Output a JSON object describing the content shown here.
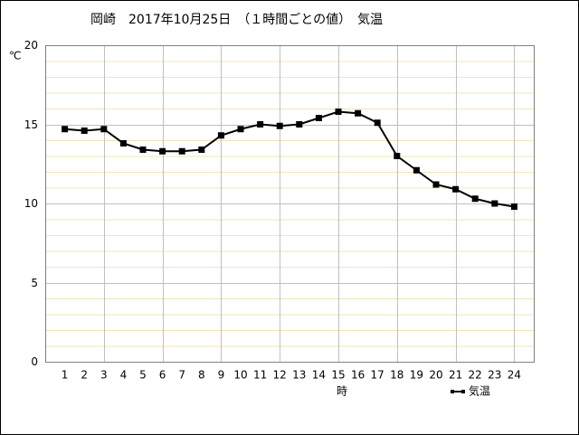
{
  "chart_data": {
    "type": "line",
    "title": "岡崎　2017年10月25日　（１時間ごとの値）　気温",
    "y_label": "℃",
    "x_label": "時",
    "x": [
      1,
      2,
      3,
      4,
      5,
      6,
      7,
      8,
      9,
      10,
      11,
      12,
      13,
      14,
      15,
      16,
      17,
      18,
      19,
      20,
      21,
      22,
      23,
      24
    ],
    "series": [
      {
        "name": "気温",
        "color": "#000000",
        "values": [
          14.7,
          14.6,
          14.7,
          13.8,
          13.4,
          13.3,
          13.3,
          13.4,
          14.3,
          14.7,
          15.0,
          14.9,
          15.0,
          15.4,
          15.8,
          15.7,
          15.1,
          13.0,
          12.1,
          11.2,
          10.9,
          10.3,
          10.0,
          9.8
        ]
      }
    ],
    "xlim": [
      0,
      25
    ],
    "xticks": [
      1,
      2,
      3,
      4,
      5,
      6,
      7,
      8,
      9,
      10,
      11,
      12,
      13,
      14,
      15,
      16,
      17,
      18,
      19,
      20,
      21,
      22,
      23,
      24
    ],
    "x_grid": [
      3,
      6,
      9,
      12,
      15,
      18,
      21,
      24
    ],
    "ylim": [
      0,
      20
    ],
    "yticks": [
      0,
      5,
      10,
      15,
      20
    ],
    "y_minor_grid": [
      1,
      2,
      3,
      4,
      6,
      7,
      8,
      9,
      11,
      12,
      13,
      14,
      16,
      17,
      18,
      19
    ],
    "grid": true,
    "legend": "bottom-right"
  }
}
